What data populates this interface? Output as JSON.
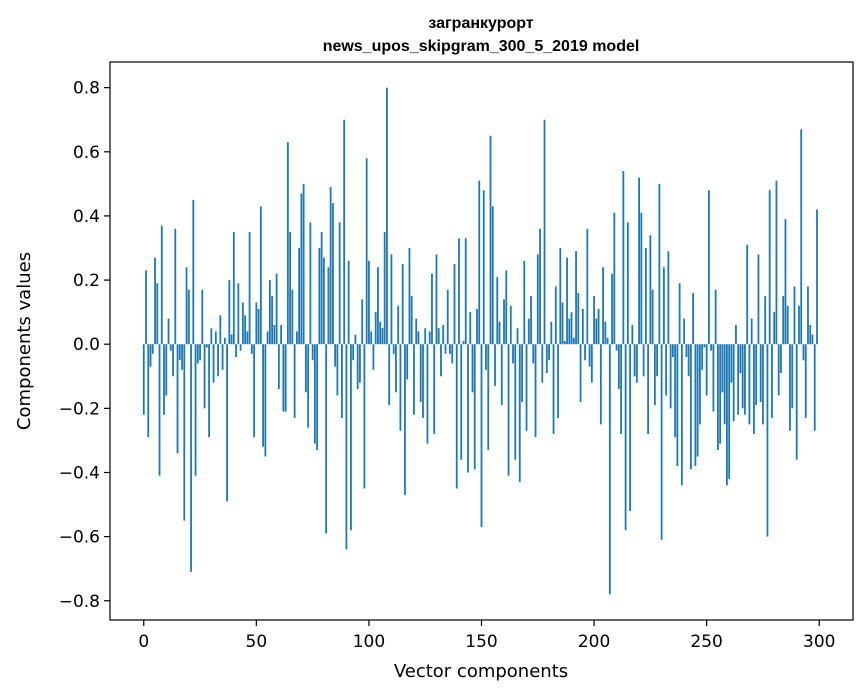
{
  "chart_data": {
    "type": "bar",
    "title_line1": "загранкурорт",
    "title_line2": "news_upos_skipgram_300_5_2019 model",
    "xlabel": "Vector components",
    "ylabel": "Components values",
    "xlim": [
      -15,
      315
    ],
    "ylim": [
      -0.86,
      0.88
    ],
    "xticks": [
      0,
      50,
      100,
      150,
      200,
      250,
      300
    ],
    "yticks": [
      -0.8,
      -0.6,
      -0.4,
      -0.2,
      0.0,
      0.2,
      0.4,
      0.6,
      0.8
    ],
    "ytick_labels": [
      "−0.8",
      "−0.6",
      "−0.4",
      "−0.2",
      "0.0",
      "0.2",
      "0.4",
      "0.6",
      "0.8"
    ],
    "xtick_labels": [
      "0",
      "50",
      "100",
      "150",
      "200",
      "250",
      "300"
    ],
    "bar_color": "#1f77b4",
    "grid": false,
    "values": [
      -0.22,
      0.23,
      -0.29,
      -0.07,
      -0.03,
      0.27,
      0.19,
      -0.41,
      0.37,
      -0.22,
      -0.16,
      0.08,
      -0.02,
      -0.1,
      0.36,
      -0.34,
      -0.05,
      -0.08,
      -0.55,
      0.24,
      0.17,
      -0.71,
      0.45,
      -0.41,
      -0.06,
      -0.05,
      0.17,
      -0.2,
      -0.01,
      -0.29,
      0.05,
      -0.12,
      0.04,
      -0.1,
      0.09,
      -0.08,
      0.02,
      -0.49,
      0.2,
      0.03,
      0.35,
      -0.04,
      0.19,
      -0.02,
      0.13,
      0.09,
      0.04,
      0.35,
      -0.03,
      -0.29,
      0.13,
      0.11,
      0.43,
      -0.32,
      -0.35,
      0.04,
      0.2,
      0.15,
      0.06,
      0.22,
      -0.14,
      0.06,
      -0.21,
      -0.21,
      0.63,
      0.35,
      0.17,
      -0.23,
      0.04,
      0.3,
      0.47,
      0.5,
      -0.15,
      -0.26,
      0.38,
      -0.05,
      -0.31,
      -0.33,
      0.3,
      0.35,
      0.27,
      -0.59,
      0.24,
      0.49,
      0.44,
      -0.07,
      -0.16,
      0.38,
      -0.23,
      0.7,
      -0.64,
      0.26,
      -0.58,
      -0.05,
      0.03,
      -0.14,
      -0.12,
      0.14,
      -0.45,
      0.58,
      0.26,
      0.04,
      -0.08,
      0.1,
      0.24,
      0.07,
      0.05,
      0.35,
      0.8,
      -0.19,
      0.28,
      -0.03,
      -0.15,
      0.12,
      -0.27,
      0.25,
      -0.47,
      -0.11,
      0.3,
      0.15,
      -0.22,
      0.08,
      0.04,
      -0.18,
      -0.23,
      0.05,
      -0.31,
      0.04,
      0.22,
      -0.28,
      0.28,
      0.05,
      -0.1,
      0.06,
      -0.03,
      0.17,
      -0.03,
      -0.06,
      0.25,
      -0.45,
      0.33,
      -0.36,
      0.01,
      0.33,
      -0.4,
      0.1,
      -0.15,
      -0.39,
      0.11,
      0.51,
      -0.57,
      0.48,
      -0.08,
      -0.33,
      0.65,
      0.43,
      -0.13,
      0.21,
      0.07,
      -0.19,
      0.14,
      0.23,
      -0.41,
      0.12,
      -0.06,
      -0.36,
      0.05,
      -0.43,
      -0.18,
      0.26,
      -0.27,
      0.08,
      0.15,
      -0.06,
      -0.29,
      0.28,
      0.36,
      -0.12,
      0.7,
      -0.09,
      -0.05,
      0.07,
      -0.28,
      0.18,
      -0.23,
      0.3,
      0.13,
      0.01,
      0.27,
      0.08,
      0.1,
      0.02,
      0.29,
      0.16,
      -0.18,
      0.11,
      -0.05,
      0.36,
      -0.07,
      -0.12,
      0.15,
      0.08,
      0.11,
      -0.25,
      0.24,
      0.07,
      0.02,
      -0.78,
      0.22,
      0.41,
      -0.02,
      -0.14,
      -0.28,
      0.54,
      -0.58,
      0.38,
      -0.52,
      0.06,
      -0.1,
      -0.12,
      0.52,
      0.41,
      -0.1,
      0.3,
      -0.28,
      0.34,
      0.17,
      -0.19,
      -0.1,
      0.5,
      -0.61,
      0.24,
      -0.16,
      0.29,
      -0.2,
      -0.04,
      -0.29,
      -0.38,
      0.19,
      -0.44,
      0.08,
      -0.04,
      -0.1,
      -0.39,
      0.16,
      -0.38,
      -0.35,
      -0.25,
      -0.08,
      -0.01,
      -0.16,
      0.48,
      -0.02,
      -0.21,
      0.17,
      -0.33,
      -0.31,
      -0.15,
      -0.25,
      -0.44,
      -0.42,
      -0.12,
      -0.24,
      0.06,
      -0.22,
      -0.09,
      -0.2,
      -0.22,
      0.31,
      -0.25,
      0.08,
      -0.28,
      -0.19,
      0.28,
      -0.18,
      -0.25,
      0.15,
      -0.6,
      0.48,
      -0.23,
      0.1,
      0.51,
      -0.16,
      -0.09,
      0.15,
      0.39,
      0.12,
      -0.27,
      -0.2,
      0.18,
      -0.36,
      0.12,
      0.67,
      -0.05,
      -0.23,
      0.18,
      0.06,
      0.03,
      -0.27,
      0.42
    ]
  }
}
